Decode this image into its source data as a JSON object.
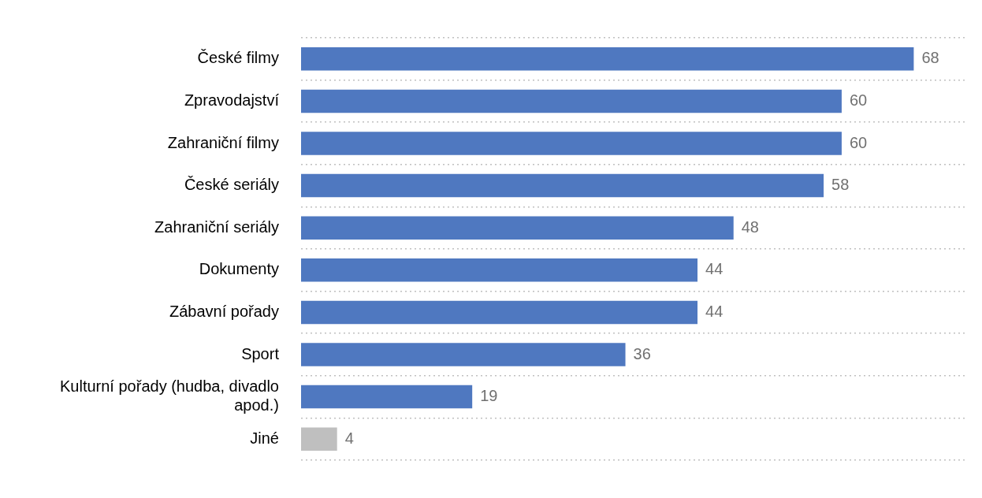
{
  "chart_data": {
    "type": "bar",
    "orientation": "horizontal",
    "categories": [
      "České filmy",
      "Zpravodajství",
      "Zahraniční filmy",
      "České seriály",
      "Zahraniční seriály",
      "Dokumenty",
      "Zábavní pořady",
      "Sport",
      "Kulturní pořady (hudba, divadlo apod.)",
      "Jiné"
    ],
    "values": [
      68,
      60,
      60,
      58,
      48,
      44,
      44,
      36,
      19,
      4
    ],
    "colors": [
      "#4f78c0",
      "#4f78c0",
      "#4f78c0",
      "#4f78c0",
      "#4f78c0",
      "#4f78c0",
      "#4f78c0",
      "#4f78c0",
      "#4f78c0",
      "#bfbfbf"
    ],
    "xlim": [
      0,
      74
    ],
    "tick_labels": "y",
    "grid": "y",
    "legend": false,
    "data_labels": true
  }
}
